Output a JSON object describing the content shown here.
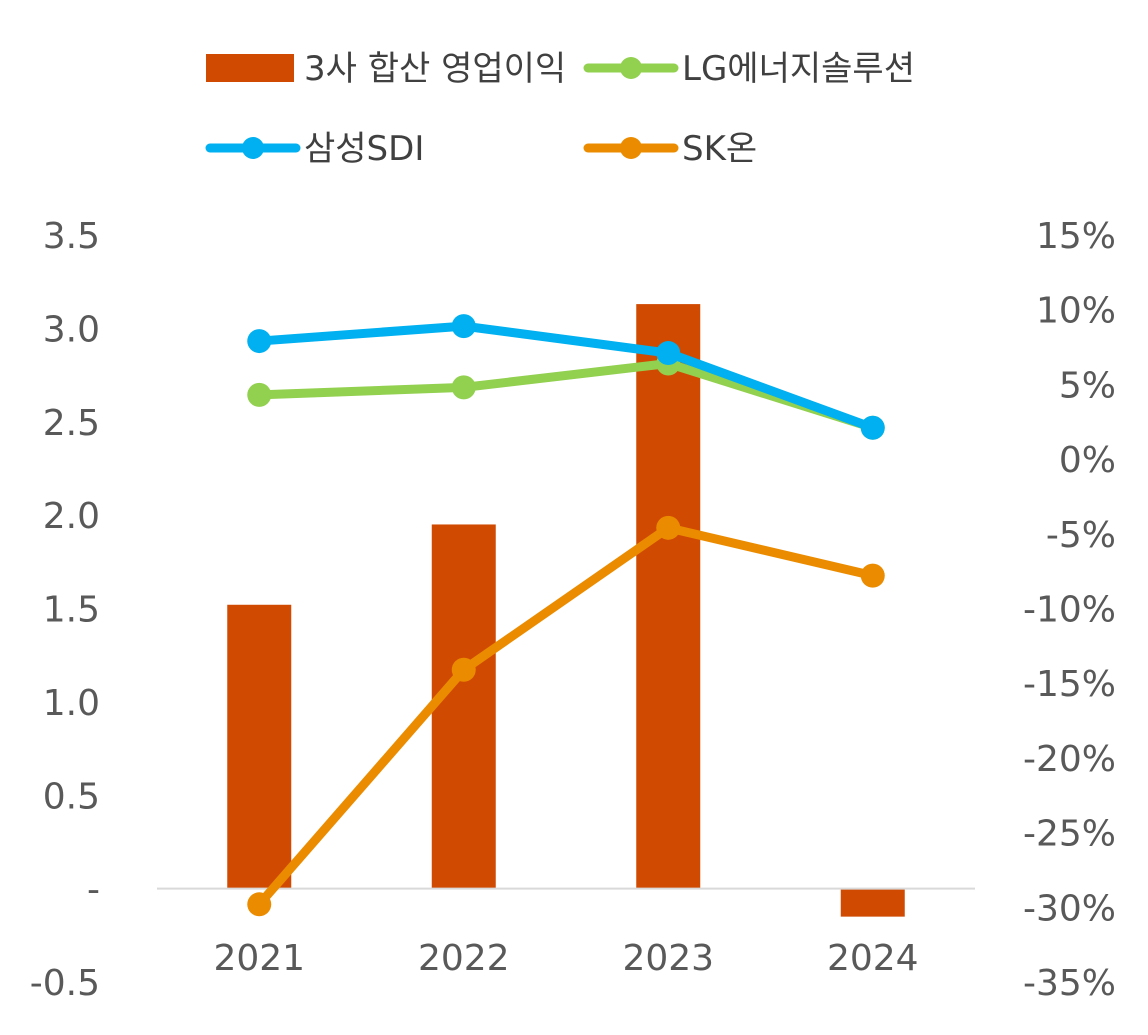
{
  "chart_data": {
    "type": "bar+line",
    "categories": [
      "2021",
      "2022",
      "2023",
      "2024"
    ],
    "left_axis": {
      "ylim": [
        -0.5,
        3.5
      ],
      "ticks": [
        3.5,
        3.0,
        2.5,
        2.0,
        1.5,
        1.0,
        0.5,
        0,
        -0.5
      ],
      "tick_labels": [
        "3.5",
        "3.0",
        "2.5",
        "2.0",
        "1.5",
        "1.0",
        "0.5",
        "-",
        "-0.5"
      ]
    },
    "right_axis": {
      "ylim": [
        -35,
        15
      ],
      "ticks": [
        15,
        10,
        5,
        0,
        -5,
        -10,
        -15,
        -20,
        -25,
        -30,
        -35
      ],
      "tick_labels": [
        "15%",
        "10%",
        "5%",
        "0%",
        "-5%",
        "-10%",
        "-15%",
        "-20%",
        "-25%",
        "-30%",
        "-35%"
      ]
    },
    "bar_series": {
      "name": "3사 합산 영업이익",
      "axis": "left",
      "color": "#D04A02",
      "values": [
        1.52,
        1.95,
        3.13,
        -0.15
      ]
    },
    "line_series": [
      {
        "name": "LG에너지솔루션",
        "axis": "right",
        "color": "#92D050",
        "values": [
          4.3,
          4.8,
          6.4,
          2.1
        ]
      },
      {
        "name": "삼성SDI",
        "axis": "right",
        "color": "#00B0F0",
        "values": [
          7.9,
          8.9,
          7.1,
          2.1
        ]
      },
      {
        "name": "SK온",
        "axis": "right",
        "color": "#EB8C00",
        "values": [
          -29.8,
          -14.1,
          -4.6,
          -7.8
        ]
      }
    ],
    "legend": [
      {
        "label": "3사 합산 영업이익",
        "kind": "bar",
        "color": "#D04A02"
      },
      {
        "label": "LG에너지솔루션",
        "kind": "line",
        "color": "#92D050"
      },
      {
        "label": "삼성SDI",
        "kind": "line",
        "color": "#00B0F0"
      },
      {
        "label": "SK온",
        "kind": "line",
        "color": "#EB8C00"
      }
    ],
    "legend_position": "top",
    "grid": false
  }
}
